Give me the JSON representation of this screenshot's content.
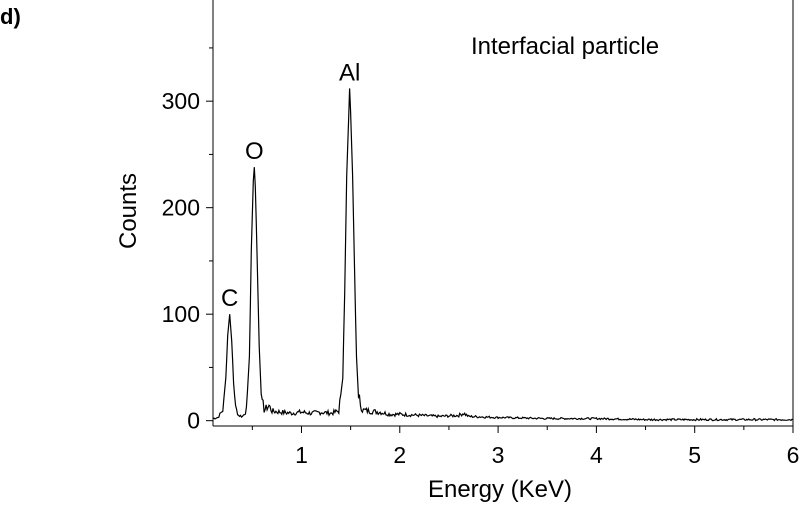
{
  "panel_label": "d)",
  "chart_data": {
    "type": "line",
    "title": "Interfacial particle",
    "xlabel": "Energy (KeV)",
    "ylabel": "Counts",
    "xlim": [
      0.1,
      6
    ],
    "ylim": [
      -5,
      395
    ],
    "xticks": [
      1,
      2,
      3,
      4,
      5,
      6
    ],
    "yticks": [
      0,
      100,
      200,
      300
    ],
    "grid": false,
    "background_level": 6,
    "peaks": [
      {
        "label": "C",
        "x": 0.27,
        "y": 100
      },
      {
        "label": "O",
        "x": 0.52,
        "y": 238
      },
      {
        "label": "Al",
        "x": 1.49,
        "y": 312
      }
    ],
    "series": [
      {
        "values": [
          [
            0.1,
            2
          ],
          [
            0.15,
            3
          ],
          [
            0.2,
            10
          ],
          [
            0.23,
            40
          ],
          [
            0.25,
            80
          ],
          [
            0.27,
            100
          ],
          [
            0.29,
            75
          ],
          [
            0.31,
            35
          ],
          [
            0.33,
            12
          ],
          [
            0.36,
            5
          ],
          [
            0.4,
            4
          ],
          [
            0.44,
            10
          ],
          [
            0.47,
            60
          ],
          [
            0.49,
            160
          ],
          [
            0.51,
            225
          ],
          [
            0.52,
            238
          ],
          [
            0.53,
            220
          ],
          [
            0.55,
            150
          ],
          [
            0.57,
            70
          ],
          [
            0.59,
            25
          ],
          [
            0.62,
            10
          ],
          [
            0.67,
            14
          ],
          [
            0.7,
            9
          ],
          [
            0.8,
            8
          ],
          [
            0.9,
            7
          ],
          [
            1.0,
            8
          ],
          [
            1.1,
            7
          ],
          [
            1.2,
            8
          ],
          [
            1.3,
            7
          ],
          [
            1.38,
            9
          ],
          [
            1.42,
            40
          ],
          [
            1.44,
            120
          ],
          [
            1.46,
            230
          ],
          [
            1.48,
            285
          ],
          [
            1.49,
            312
          ],
          [
            1.5,
            290
          ],
          [
            1.52,
            230
          ],
          [
            1.54,
            140
          ],
          [
            1.56,
            60
          ],
          [
            1.58,
            22
          ],
          [
            1.62,
            10
          ],
          [
            1.7,
            9
          ],
          [
            1.8,
            8
          ],
          [
            1.9,
            6
          ],
          [
            2.0,
            6
          ],
          [
            2.2,
            5
          ],
          [
            2.4,
            4
          ],
          [
            2.6,
            5
          ],
          [
            2.65,
            7
          ],
          [
            2.7,
            4
          ],
          [
            3.0,
            3
          ],
          [
            3.5,
            2
          ],
          [
            4.0,
            2
          ],
          [
            4.5,
            1
          ],
          [
            5.0,
            1
          ],
          [
            5.5,
            1
          ],
          [
            6.0,
            1
          ]
        ]
      }
    ]
  }
}
